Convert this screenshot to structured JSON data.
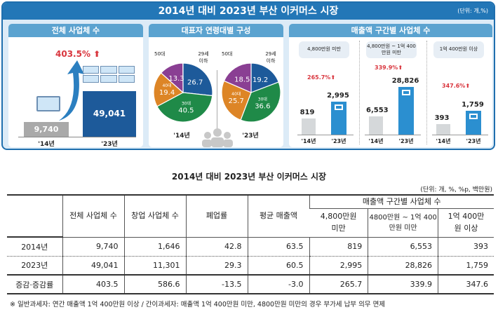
{
  "infographic": {
    "title": "2014년 대비 2023년 부산 이커머스 시장",
    "unit": "(단위: 개,%)",
    "total": {
      "heading": "전체 사업체 수",
      "growth": "403.5%",
      "years": [
        "'14년",
        "'23년"
      ],
      "values": [
        "9,740",
        "49,041"
      ]
    },
    "age": {
      "heading": "대표자 연령대별 구성",
      "years": [
        "'14년",
        "'23년"
      ],
      "labels": {
        "u29": "29세 이하",
        "s30": "30대",
        "s40": "40대",
        "s50": "50대"
      }
    },
    "revenue": {
      "heading": "매출액 구간별 사업체 수",
      "groups": [
        {
          "label": "4,800만원 미만",
          "growth": "265.7%",
          "v14": "819",
          "v23": "2,995"
        },
        {
          "label": "4,800만원 ~ 1억 400만원 미만",
          "growth": "339.9%",
          "v14": "6,553",
          "v23": "28,826"
        },
        {
          "label": "1억 400만원 이상",
          "growth": "347.6%",
          "v14": "393",
          "v23": "1,759"
        }
      ],
      "years": [
        "'14년",
        "'23년"
      ]
    }
  },
  "chart_data": [
    {
      "type": "bar",
      "title": "전체 사업체 수",
      "categories": [
        "'14년",
        "'23년"
      ],
      "values": [
        9740,
        49041
      ],
      "annotation": "403.5%"
    },
    {
      "type": "pie",
      "title": "'14년",
      "categories": [
        "29세 이하",
        "30대",
        "40대",
        "50대"
      ],
      "values": [
        26.7,
        40.5,
        19.4,
        13.3
      ]
    },
    {
      "type": "pie",
      "title": "'23년",
      "categories": [
        "29세 이하",
        "30대",
        "40대",
        "50대"
      ],
      "values": [
        19.2,
        36.6,
        25.7,
        18.5
      ]
    },
    {
      "type": "bar",
      "title": "4,800만원 미만",
      "categories": [
        "'14년",
        "'23년"
      ],
      "values": [
        819,
        2995
      ],
      "annotation": "265.7%"
    },
    {
      "type": "bar",
      "title": "4,800만원 ~ 1억 400만원 미만",
      "categories": [
        "'14년",
        "'23년"
      ],
      "values": [
        6553,
        28826
      ],
      "annotation": "339.9%"
    },
    {
      "type": "bar",
      "title": "1억 400만원 이상",
      "categories": [
        "'14년",
        "'23년"
      ],
      "values": [
        393,
        1759
      ],
      "annotation": "347.6%"
    }
  ],
  "colors": {
    "u29": "#1d5a9a",
    "s30": "#1f8a48",
    "s40": "#dd8526",
    "s50": "#8a3f93",
    "bar23": "#2b8fd0",
    "bar14": "#d5d8da",
    "title": "#2377b7"
  },
  "table": {
    "title": "2014년 대비 2023년 부산 이커머스 시장",
    "unit": "(단위: 개, %, %p, 백만원)",
    "headers": {
      "total": "전체 사업체 수",
      "startup": "창업 사업체 수",
      "closure": "폐업률",
      "avg": "평균 매출액",
      "group": "매출액 구간별 사업체 수",
      "r1": "4,800만원 미만",
      "r2": "4800만원 ~ 1억 400만원 미만",
      "r3": "1억 400만원 이상"
    },
    "rows": [
      [
        "2014년",
        "9,740",
        "1,646",
        "42.8",
        "63.5",
        "819",
        "6,553",
        "393"
      ],
      [
        "2023년",
        "49,041",
        "11,301",
        "29.3",
        "60.5",
        "2,995",
        "28,826",
        "1,759"
      ],
      [
        "증감·증감률",
        "403.5",
        "586.6",
        "-13.5",
        "-3.0",
        "265.7",
        "339.9",
        "347.6"
      ]
    ]
  },
  "footnote": "※ 일반과세자: 연간 매출액 1억 400만원 이상 / 간이과세자: 매출액 1억 400만원 미만, 4800만원 미만의 경우 부가세 납부 의무 면제"
}
